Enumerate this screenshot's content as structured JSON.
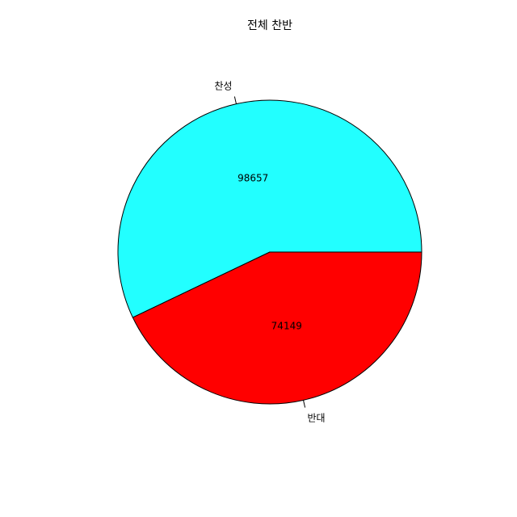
{
  "chart_data": {
    "type": "pie",
    "title": "전체 찬반",
    "slices": [
      {
        "label": "찬성",
        "value": 98657,
        "value_label": "98657",
        "color": "#22ffff"
      },
      {
        "label": "반대",
        "value": 74149,
        "value_label": "74149",
        "color": "#ff0000"
      }
    ],
    "start": "3 o'clock",
    "direction": "counter-clockwise",
    "border_color": "#000000"
  }
}
